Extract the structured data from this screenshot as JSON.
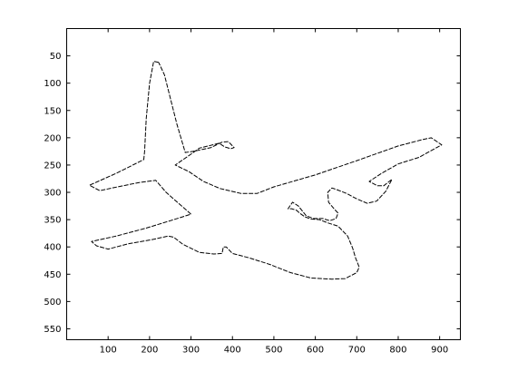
{
  "chart_data": {
    "type": "line",
    "title": "",
    "xlabel": "",
    "ylabel": "",
    "xlim": [
      0,
      950
    ],
    "ylim": [
      0,
      570
    ],
    "y_reversed": true,
    "grid": false,
    "xticks": [
      100,
      200,
      300,
      400,
      500,
      600,
      700,
      800,
      900
    ],
    "yticks": [
      50,
      100,
      150,
      200,
      250,
      300,
      350,
      400,
      450,
      500,
      550
    ],
    "series": [
      {
        "points": [
          [
            222,
            62
          ],
          [
            210,
            60
          ],
          [
            200,
            100
          ],
          [
            192,
            165
          ],
          [
            188,
            225
          ],
          [
            186,
            240
          ],
          [
            120,
            265
          ],
          [
            55,
            287
          ],
          [
            80,
            297
          ],
          [
            110,
            292
          ],
          [
            175,
            282
          ],
          [
            215,
            278
          ],
          [
            240,
            300
          ],
          [
            270,
            320
          ],
          [
            300,
            340
          ],
          [
            250,
            352
          ],
          [
            190,
            366
          ],
          [
            120,
            380
          ],
          [
            60,
            390
          ],
          [
            72,
            398
          ],
          [
            100,
            404
          ],
          [
            150,
            394
          ],
          [
            210,
            386
          ],
          [
            245,
            380
          ],
          [
            258,
            382
          ],
          [
            280,
            395
          ],
          [
            320,
            410
          ],
          [
            355,
            413
          ],
          [
            375,
            412
          ],
          [
            378,
            400
          ],
          [
            385,
            400
          ],
          [
            400,
            412
          ],
          [
            440,
            420
          ],
          [
            490,
            432
          ],
          [
            540,
            447
          ],
          [
            590,
            457
          ],
          [
            640,
            459
          ],
          [
            672,
            458
          ],
          [
            700,
            447
          ],
          [
            706,
            437
          ],
          [
            697,
            420
          ],
          [
            690,
            402
          ],
          [
            678,
            380
          ],
          [
            655,
            362
          ],
          [
            630,
            356
          ],
          [
            610,
            350
          ],
          [
            590,
            349
          ],
          [
            575,
            345
          ],
          [
            562,
            338
          ],
          [
            555,
            333
          ],
          [
            543,
            330
          ],
          [
            534,
            330
          ],
          [
            545,
            318
          ],
          [
            559,
            325
          ],
          [
            578,
            343
          ],
          [
            596,
            348
          ],
          [
            618,
            348
          ],
          [
            635,
            352
          ],
          [
            650,
            348
          ],
          [
            655,
            338
          ],
          [
            645,
            330
          ],
          [
            632,
            318
          ],
          [
            630,
            300
          ],
          [
            640,
            292
          ],
          [
            655,
            296
          ],
          [
            675,
            302
          ],
          [
            700,
            312
          ],
          [
            725,
            320
          ],
          [
            748,
            316
          ],
          [
            770,
            298
          ],
          [
            785,
            276
          ],
          [
            765,
            288
          ],
          [
            750,
            288
          ],
          [
            730,
            280
          ],
          [
            760,
            265
          ],
          [
            800,
            248
          ],
          [
            850,
            236
          ],
          [
            905,
            213
          ],
          [
            880,
            200
          ],
          [
            860,
            203
          ],
          [
            800,
            215
          ],
          [
            700,
            242
          ],
          [
            600,
            268
          ],
          [
            500,
            290
          ],
          [
            460,
            302
          ],
          [
            420,
            302
          ],
          [
            370,
            293
          ],
          [
            330,
            280
          ],
          [
            295,
            262
          ],
          [
            262,
            250
          ],
          [
            300,
            230
          ],
          [
            320,
            219
          ],
          [
            368,
            210
          ],
          [
            382,
            217
          ],
          [
            396,
            220
          ],
          [
            404,
            218
          ],
          [
            390,
            207
          ],
          [
            375,
            208
          ],
          [
            348,
            218
          ],
          [
            305,
            225
          ],
          [
            286,
            227
          ],
          [
            266,
            175
          ],
          [
            236,
            85
          ],
          [
            222,
            62
          ]
        ]
      }
    ]
  }
}
